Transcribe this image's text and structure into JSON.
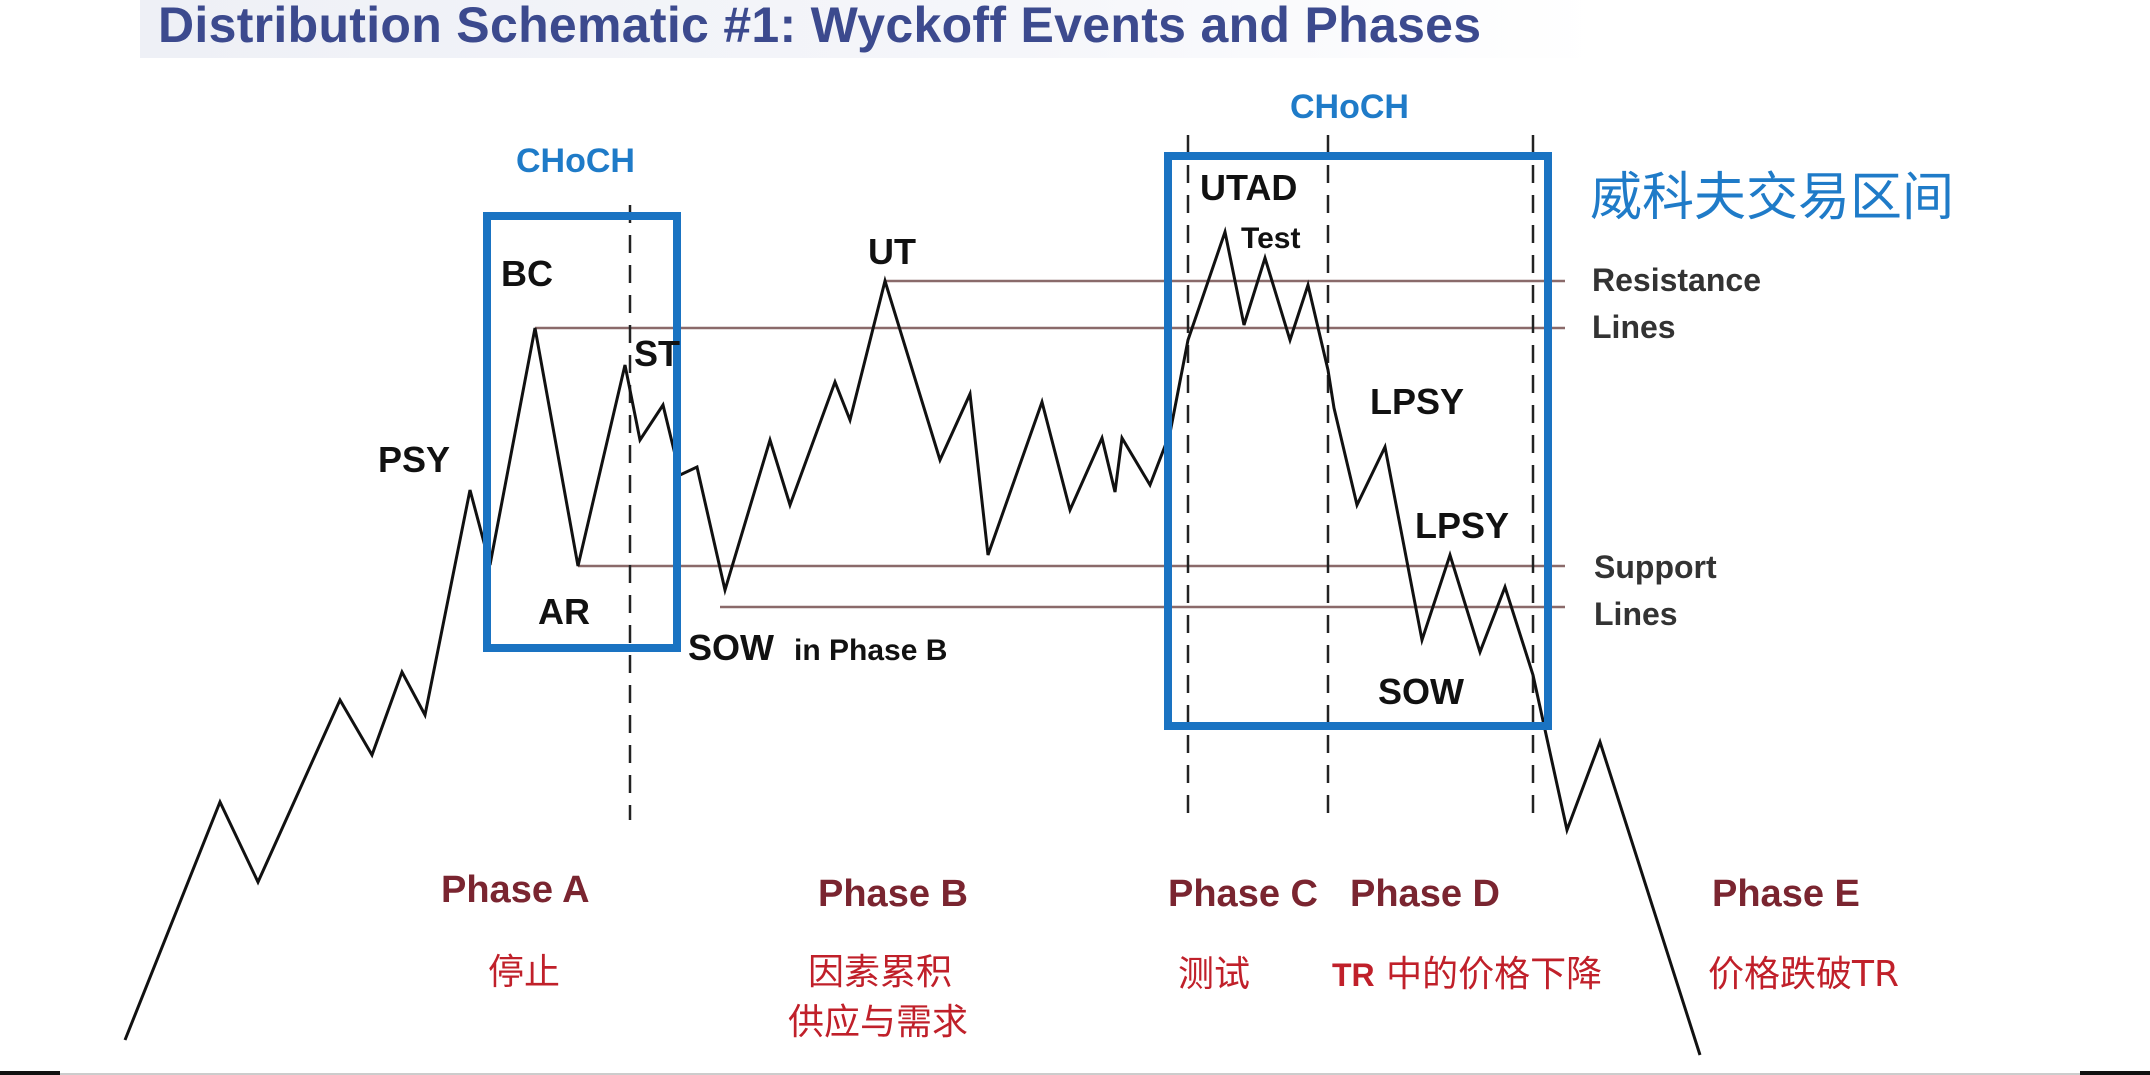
{
  "title": "Distribution Schematic #1: Wyckoff Events and Phases",
  "choch_labels": [
    "CHoCH",
    "CHoCH"
  ],
  "trading_range_cn": "威科夫交易区间",
  "events": {
    "psy": "PSY",
    "bc": "BC",
    "ar": "AR",
    "st": "ST",
    "ut": "UT",
    "sow_phase_b": "SOW",
    "sow_phase_b_suffix": "in Phase B",
    "utad": "UTAD",
    "test": "Test",
    "lpsy_1": "LPSY",
    "lpsy_2": "LPSY",
    "sow": "SOW"
  },
  "lines": {
    "resistance_1": "Resistance",
    "resistance_2": "Lines",
    "support_1": "Support",
    "support_2": "Lines"
  },
  "phases": [
    {
      "name": "Phase A",
      "cn": [
        "停止"
      ]
    },
    {
      "name": "Phase B",
      "cn": [
        "因素累积",
        "供应与需求"
      ]
    },
    {
      "name": "Phase C",
      "cn": [
        "测试"
      ]
    },
    {
      "name": "Phase D",
      "cn_prefix": "TR",
      "cn": [
        "中的价格下降"
      ]
    },
    {
      "name": "Phase E",
      "cn": [
        "价格跌破TR"
      ]
    }
  ],
  "colors": {
    "price_line": "#111111",
    "level_lines": "#8a6a6a",
    "boxes": "#1a73c2",
    "phase_labels": "#7a2530",
    "chinese_labels": "#c0202a",
    "choch": "#1f7bc8"
  }
}
